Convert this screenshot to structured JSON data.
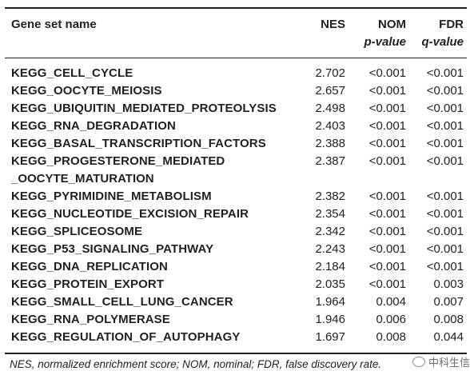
{
  "table": {
    "headers": {
      "name": "Gene set name",
      "nes": "NES",
      "nom_line1": "NOM",
      "nom_line2": "p-value",
      "fdr_line1": "FDR",
      "fdr_line2": "q-value"
    },
    "rows": [
      {
        "name": "KEGG_CELL_CYCLE",
        "nes": "2.702",
        "nom": "<0.001",
        "fdr": "<0.001"
      },
      {
        "name": "KEGG_OOCYTE_MEIOSIS",
        "nes": "2.657",
        "nom": "<0.001",
        "fdr": "<0.001"
      },
      {
        "name": "KEGG_UBIQUITIN_MEDIATED_PROTEOLYSIS",
        "nes": "2.498",
        "nom": "<0.001",
        "fdr": "<0.001"
      },
      {
        "name": "KEGG_RNA_DEGRADATION",
        "nes": "2.403",
        "nom": "<0.001",
        "fdr": "<0.001"
      },
      {
        "name": "KEGG_BASAL_TRANSCRIPTION_FACTORS",
        "nes": "2.388",
        "nom": "<0.001",
        "fdr": "<0.001"
      },
      {
        "name": "KEGG_PROGESTERONE_MEDIATED",
        "name_cont": "_OOCYTE_MATURATION",
        "nes": "2.387",
        "nom": "<0.001",
        "fdr": "<0.001"
      },
      {
        "name": "KEGG_PYRIMIDINE_METABOLISM",
        "nes": "2.382",
        "nom": "<0.001",
        "fdr": "<0.001"
      },
      {
        "name": "KEGG_NUCLEOTIDE_EXCISION_REPAIR",
        "nes": "2.354",
        "nom": "<0.001",
        "fdr": "<0.001"
      },
      {
        "name": "KEGG_SPLICEOSOME",
        "nes": "2.342",
        "nom": "<0.001",
        "fdr": "<0.001"
      },
      {
        "name": "KEGG_P53_SIGNALING_PATHWAY",
        "nes": "2.243",
        "nom": "<0.001",
        "fdr": "<0.001"
      },
      {
        "name": "KEGG_DNA_REPLICATION",
        "nes": "2.184",
        "nom": "<0.001",
        "fdr": "<0.001"
      },
      {
        "name": "KEGG_PROTEIN_EXPORT",
        "nes": "2.035",
        "nom": "<0.001",
        "fdr": "0.003"
      },
      {
        "name": "KEGG_SMALL_CELL_LUNG_CANCER",
        "nes": "1.964",
        "nom": "0.004",
        "fdr": "0.007"
      },
      {
        "name": "KEGG_RNA_POLYMERASE",
        "nes": "1.946",
        "nom": "0.006",
        "fdr": "0.008"
      },
      {
        "name": "KEGG_REGULATION_OF_AUTOPHAGY",
        "nes": "1.697",
        "nom": "0.008",
        "fdr": "0.044"
      }
    ]
  },
  "footnote": "NES, normalized enrichment score; NOM, nominal; FDR, false discovery rate.",
  "watermark": "中科生信"
}
